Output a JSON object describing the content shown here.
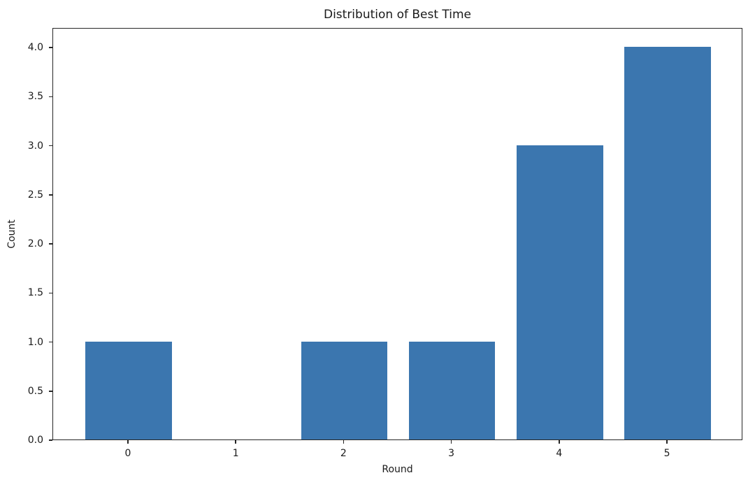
{
  "chart_data": {
    "type": "bar",
    "title": "Distribution of Best Time",
    "xlabel": "Round",
    "ylabel": "Count",
    "categories": [
      "0",
      "1",
      "2",
      "3",
      "4",
      "5"
    ],
    "values": [
      1,
      0,
      1,
      1,
      3,
      4
    ],
    "yticks": [
      "0.0",
      "0.5",
      "1.0",
      "1.5",
      "2.0",
      "2.5",
      "3.0",
      "3.5",
      "4.0"
    ],
    "ylim": [
      0,
      4.2
    ],
    "x_margin_units": 0.7,
    "bar_width_fraction": 0.8,
    "bar_color": "#3b76af",
    "spine_color": "#262626",
    "background_color": "#ffffff",
    "grid": "off",
    "legend": "none"
  }
}
